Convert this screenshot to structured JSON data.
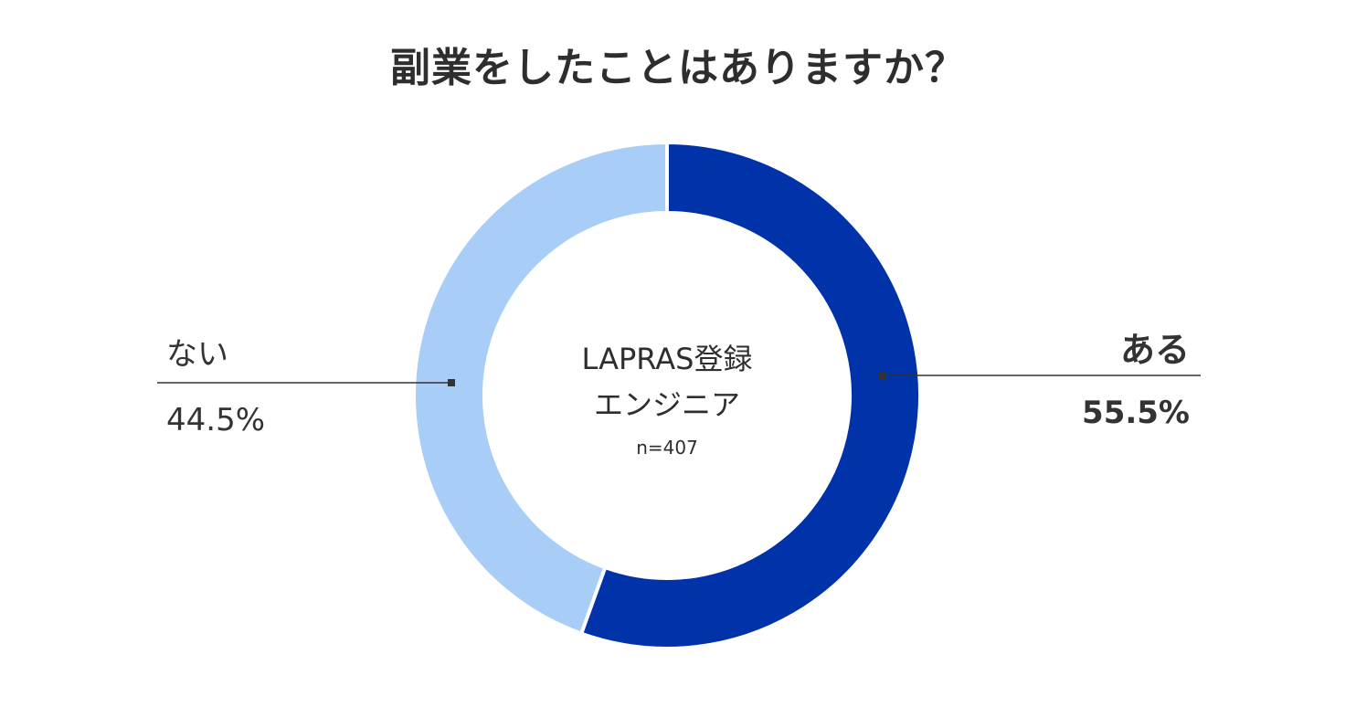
{
  "chart_data": {
    "type": "pie",
    "variant": "donut",
    "title": "副業をしたことはありますか？",
    "center_label": {
      "line1": "LAPRAS登録",
      "line2": "エンジニア",
      "sample": "n=407"
    },
    "slices": [
      {
        "label": "ある",
        "value": 55.5,
        "value_label": "55.5%",
        "color": "#0033aa"
      },
      {
        "label": "ない",
        "value": 44.5,
        "value_label": "44.5%",
        "color": "#a8cdf7"
      }
    ]
  }
}
